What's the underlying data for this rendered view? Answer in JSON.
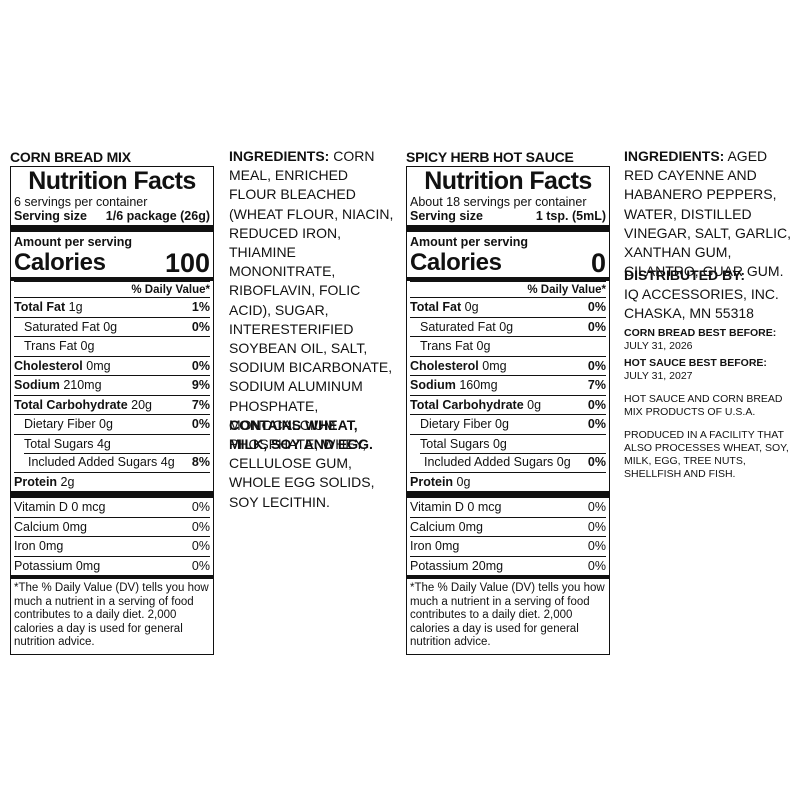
{
  "left": {
    "product_title": "CORN BREAD MIX",
    "nf_title": "Nutrition Facts",
    "servings_per_container": "6 servings per container",
    "serving_size_label": "Serving size",
    "serving_size_value": "1/6 package (26g)",
    "amount_per_serving": "Amount per serving",
    "calories_label": "Calories",
    "calories_value": "100",
    "dv_header": "% Daily Value*",
    "total_fat": {
      "label": "Total Fat",
      "amount": "1g",
      "pct": "1%"
    },
    "saturated_fat": {
      "label": "Saturated Fat 0g",
      "pct": "0%"
    },
    "trans_fat": {
      "label": "Trans Fat 0g"
    },
    "cholesterol": {
      "label": "Cholesterol",
      "amount": "0mg",
      "pct": "0%"
    },
    "sodium": {
      "label": "Sodium",
      "amount": "210mg",
      "pct": "9%"
    },
    "total_carb": {
      "label": "Total Carbohydrate",
      "amount": "20g",
      "pct": "7%"
    },
    "dietary_fiber": {
      "label": "Dietary Fiber 0g",
      "pct": "0%"
    },
    "total_sugars": {
      "label": "Total Sugars 4g"
    },
    "added_sugars": {
      "label": "Included Added Sugars 4g",
      "pct": "8%"
    },
    "protein": {
      "label": "Protein",
      "amount": "2g"
    },
    "vitamin_d": {
      "label": "Vitamin D 0 mcg",
      "pct": "0%"
    },
    "calcium": {
      "label": "Calcium 0mg",
      "pct": "0%"
    },
    "iron": {
      "label": "Iron 0mg",
      "pct": "0%"
    },
    "potassium": {
      "label": "Potassium 0mg",
      "pct": "0%"
    },
    "footnote": "*The % Daily Value (DV) tells you how much a nutrient in a serving of food contributes to a daily diet. 2,000 calories a day is used for general nutrition advice."
  },
  "right": {
    "product_title": "SPICY HERB HOT SAUCE",
    "nf_title": "Nutrition Facts",
    "servings_per_container": "About 18 servings per container",
    "serving_size_label": "Serving size",
    "serving_size_value": "1 tsp. (5mL)",
    "amount_per_serving": "Amount per serving",
    "calories_label": "Calories",
    "calories_value": "0",
    "dv_header": "% Daily Value*",
    "total_fat": {
      "label": "Total Fat",
      "amount": "0g",
      "pct": "0%"
    },
    "saturated_fat": {
      "label": "Saturated Fat 0g",
      "pct": "0%"
    },
    "trans_fat": {
      "label": "Trans Fat 0g"
    },
    "cholesterol": {
      "label": "Cholesterol",
      "amount": "0mg",
      "pct": "0%"
    },
    "sodium": {
      "label": "Sodium",
      "amount": "160mg",
      "pct": "7%"
    },
    "total_carb": {
      "label": "Total Carbohydrate",
      "amount": "0g",
      "pct": "0%"
    },
    "dietary_fiber": {
      "label": "Dietary Fiber 0g",
      "pct": "0%"
    },
    "total_sugars": {
      "label": "Total Sugars 0g"
    },
    "added_sugars": {
      "label": "Included Added Sugars 0g",
      "pct": "0%"
    },
    "protein": {
      "label": "Protein",
      "amount": "0g"
    },
    "vitamin_d": {
      "label": "Vitamin D 0 mcg",
      "pct": "0%"
    },
    "calcium": {
      "label": "Calcium 0mg",
      "pct": "0%"
    },
    "iron": {
      "label": "Iron 0mg",
      "pct": "0%"
    },
    "potassium": {
      "label": "Potassium 20mg",
      "pct": "0%"
    },
    "footnote": "*The % Daily Value (DV) tells you how much a nutrient in a serving of food contributes to a daily diet. 2,000 calories a day is used for general nutrition advice."
  },
  "corn_ingredients": {
    "label": "INGREDIENTS:",
    "text": "CORN MEAL, ENRICHED FLOUR BLEACHED (WHEAT FLOUR, NIACIN, REDUCED IRON, THIAMINE MONONITRATE, RIBOFLAVIN, FOLIC ACID), SUGAR, INTERESTERIFIED SOYBEAN OIL, SALT, SODIUM BICARBONATE, SODIUM ALUMINUM PHOSPHATE, MONOCALCIUM PHOSPHATE, WHEY, CELLULOSE GUM, WHOLE EGG SOLIDS, SOY LECITHIN.",
    "contains": "CONTAINS WHEAT, MILK, SOY AND EGG."
  },
  "sauce_ingredients": {
    "label": "INGREDIENTS:",
    "text": "AGED RED CAYENNE AND HABANERO PEPPERS, WATER, DISTILLED VINEGAR, SALT, GARLIC, XANTHAN GUM, CILANTRO, GUAR GUM."
  },
  "distribution": {
    "heading": "DISTRIBUTED BY:",
    "company": "IQ ACCESSORIES, INC.",
    "city": "CHASKA, MN 55318",
    "corn_best_label": "CORN BREAD BEST BEFORE:",
    "corn_best_date": "JULY 31, 2026",
    "sauce_best_label": "HOT SAUCE BEST BEFORE:",
    "sauce_best_date": "JULY 31, 2027",
    "origin": "HOT SAUCE AND CORN BREAD MIX PRODUCTS OF U.S.A.",
    "facility": "PRODUCED IN A FACILITY THAT ALSO PROCESSES WHEAT, SOY, MILK, EGG, TREE NUTS, SHELLFISH AND FISH."
  }
}
